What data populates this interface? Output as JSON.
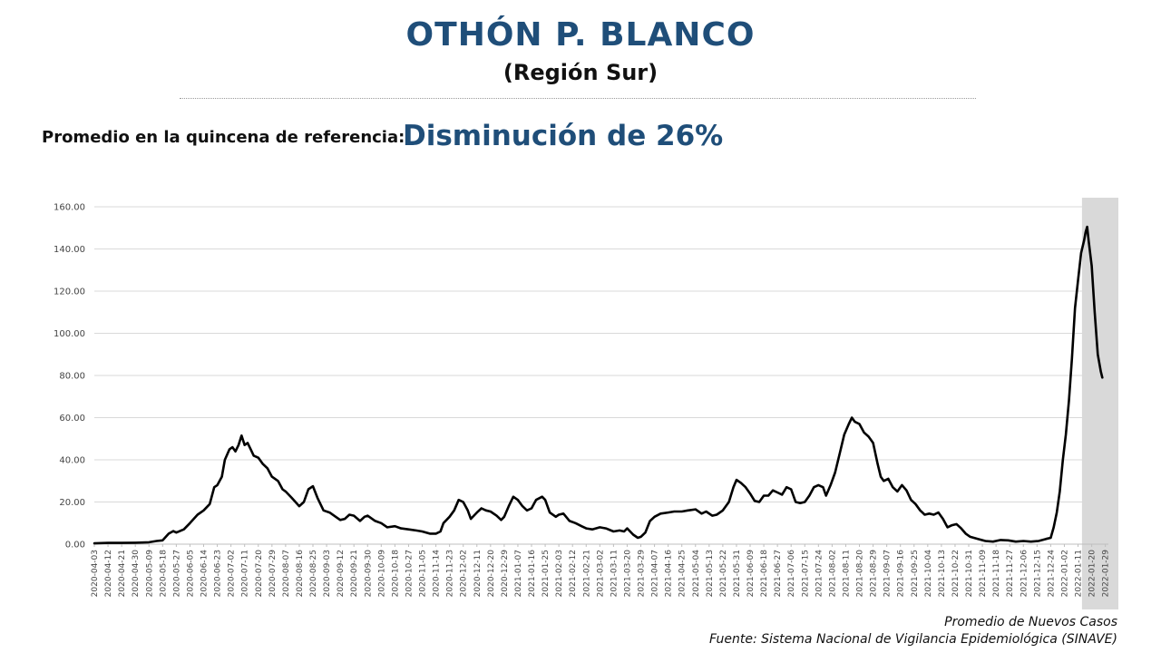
{
  "header": {
    "title": "OTHÓN P. BLANCO",
    "subtitle": "(Región Sur)"
  },
  "reference": {
    "label": "Promedio en la quincena de referencia:",
    "value": "Disminución de 26%"
  },
  "footer": {
    "series_label": "Promedio de Nuevos Casos",
    "source": "Fuente: Sistema Nacional de Vigilancia Epidemiológica (SINAVE)"
  },
  "colors": {
    "title": "#1f4e79",
    "line": "#000000",
    "grid": "#d9d9d9",
    "highlight": "#d9d9d9"
  },
  "chart_data": {
    "type": "line",
    "title": "",
    "xlabel": "",
    "ylabel": "",
    "ylim": [
      0,
      160
    ],
    "y_ticks": [
      "0.00",
      "20.00",
      "40.00",
      "60.00",
      "80.00",
      "100.00",
      "120.00",
      "140.00",
      "160.00"
    ],
    "grid": true,
    "highlight_range": [
      "2022-01-16",
      "2022-02-01"
    ],
    "x_tick_labels": [
      "2020-04-03",
      "2020-04-12",
      "2020-04-21",
      "2020-04-30",
      "2020-05-09",
      "2020-05-18",
      "2020-05-27",
      "2020-06-05",
      "2020-06-14",
      "2020-06-23",
      "2020-07-02",
      "2020-07-11",
      "2020-07-20",
      "2020-07-29",
      "2020-08-07",
      "2020-08-16",
      "2020-08-25",
      "2020-09-03",
      "2020-09-12",
      "2020-09-21",
      "2020-09-30",
      "2020-10-09",
      "2020-10-18",
      "2020-10-27",
      "2020-11-05",
      "2020-11-14",
      "2020-11-23",
      "2020-12-02",
      "2020-12-11",
      "2020-12-20",
      "2020-12-29",
      "2021-01-07",
      "2021-01-16",
      "2021-01-25",
      "2021-02-03",
      "2021-02-12",
      "2021-02-21",
      "2021-03-02",
      "2021-03-11",
      "2021-03-20",
      "2021-03-29",
      "2021-04-07",
      "2021-04-16",
      "2021-04-25",
      "2021-05-04",
      "2021-05-13",
      "2021-05-22",
      "2021-05-31",
      "2021-06-09",
      "2021-06-18",
      "2021-06-27",
      "2021-07-06",
      "2021-07-15",
      "2021-07-24",
      "2021-08-02",
      "2021-08-11",
      "2021-08-20",
      "2021-08-29",
      "2021-09-07",
      "2021-09-16",
      "2021-09-25",
      "2021-10-04",
      "2021-10-13",
      "2021-10-22",
      "2021-10-31",
      "2021-11-09",
      "2021-11-18",
      "2021-11-27",
      "2021-12-06",
      "2021-12-15",
      "2021-12-24",
      "2022-01-02",
      "2022-01-11",
      "2022-01-20",
      "2022-01-29"
    ],
    "series": [
      {
        "values": [
          [
            "2020-04-03",
            0.4
          ],
          [
            "2020-04-12",
            0.6
          ],
          [
            "2020-04-21",
            0.6
          ],
          [
            "2020-04-30",
            0.7
          ],
          [
            "2020-05-09",
            0.9
          ],
          [
            "2020-05-14",
            1.5
          ],
          [
            "2020-05-18",
            1.8
          ],
          [
            "2020-05-22",
            5
          ],
          [
            "2020-05-25",
            6.2
          ],
          [
            "2020-05-27",
            5.5
          ],
          [
            "2020-06-01",
            7
          ],
          [
            "2020-06-05",
            10
          ],
          [
            "2020-06-10",
            14
          ],
          [
            "2020-06-14",
            16
          ],
          [
            "2020-06-18",
            19
          ],
          [
            "2020-06-21",
            27
          ],
          [
            "2020-06-23",
            28
          ],
          [
            "2020-06-26",
            32
          ],
          [
            "2020-06-28",
            40
          ],
          [
            "2020-07-01",
            45
          ],
          [
            "2020-07-03",
            46
          ],
          [
            "2020-07-05",
            44
          ],
          [
            "2020-07-07",
            47
          ],
          [
            "2020-07-09",
            51.5
          ],
          [
            "2020-07-11",
            47
          ],
          [
            "2020-07-13",
            48
          ],
          [
            "2020-07-15",
            45
          ],
          [
            "2020-07-17",
            42
          ],
          [
            "2020-07-20",
            41
          ],
          [
            "2020-07-23",
            38
          ],
          [
            "2020-07-26",
            36
          ],
          [
            "2020-07-29",
            32
          ],
          [
            "2020-08-02",
            30
          ],
          [
            "2020-08-05",
            26
          ],
          [
            "2020-08-07",
            25
          ],
          [
            "2020-08-11",
            22
          ],
          [
            "2020-08-16",
            18
          ],
          [
            "2020-08-19",
            20
          ],
          [
            "2020-08-22",
            26
          ],
          [
            "2020-08-25",
            27.5
          ],
          [
            "2020-08-28",
            22
          ],
          [
            "2020-09-01",
            16
          ],
          [
            "2020-09-05",
            15
          ],
          [
            "2020-09-09",
            13
          ],
          [
            "2020-09-12",
            11.5
          ],
          [
            "2020-09-15",
            12
          ],
          [
            "2020-09-18",
            14
          ],
          [
            "2020-09-21",
            13.5
          ],
          [
            "2020-09-25",
            11
          ],
          [
            "2020-09-28",
            13
          ],
          [
            "2020-09-30",
            13.5
          ],
          [
            "2020-10-05",
            11
          ],
          [
            "2020-10-09",
            10
          ],
          [
            "2020-10-13",
            8
          ],
          [
            "2020-10-18",
            8.5
          ],
          [
            "2020-10-22",
            7.5
          ],
          [
            "2020-10-27",
            7
          ],
          [
            "2020-11-01",
            6.5
          ],
          [
            "2020-11-05",
            6
          ],
          [
            "2020-11-10",
            5
          ],
          [
            "2020-11-14",
            5
          ],
          [
            "2020-11-17",
            6
          ],
          [
            "2020-11-19",
            10
          ],
          [
            "2020-11-23",
            13
          ],
          [
            "2020-11-26",
            16
          ],
          [
            "2020-11-29",
            21
          ],
          [
            "2020-12-02",
            20
          ],
          [
            "2020-12-05",
            16
          ],
          [
            "2020-12-07",
            12
          ],
          [
            "2020-12-11",
            15
          ],
          [
            "2020-12-14",
            17
          ],
          [
            "2020-12-17",
            16
          ],
          [
            "2020-12-20",
            15.5
          ],
          [
            "2020-12-24",
            13.5
          ],
          [
            "2020-12-27",
            11.5
          ],
          [
            "2020-12-29",
            13
          ],
          [
            "2021-01-01",
            18
          ],
          [
            "2021-01-04",
            22.5
          ],
          [
            "2021-01-07",
            21
          ],
          [
            "2021-01-10",
            18
          ],
          [
            "2021-01-13",
            16
          ],
          [
            "2021-01-16",
            17
          ],
          [
            "2021-01-19",
            21
          ],
          [
            "2021-01-23",
            22.5
          ],
          [
            "2021-01-25",
            21
          ],
          [
            "2021-01-28",
            15
          ],
          [
            "2021-02-01",
            13
          ],
          [
            "2021-02-03",
            14
          ],
          [
            "2021-02-06",
            14.5
          ],
          [
            "2021-02-10",
            11
          ],
          [
            "2021-02-14",
            10
          ],
          [
            "2021-02-18",
            8.5
          ],
          [
            "2021-02-21",
            7.5
          ],
          [
            "2021-02-25",
            7
          ],
          [
            "2021-03-02",
            8
          ],
          [
            "2021-03-06",
            7.5
          ],
          [
            "2021-03-11",
            6
          ],
          [
            "2021-03-15",
            6.5
          ],
          [
            "2021-03-18",
            6
          ],
          [
            "2021-03-20",
            7.5
          ],
          [
            "2021-03-24",
            4.5
          ],
          [
            "2021-03-27",
            3
          ],
          [
            "2021-03-29",
            3.5
          ],
          [
            "2021-04-01",
            5.5
          ],
          [
            "2021-04-04",
            11
          ],
          [
            "2021-04-07",
            13
          ],
          [
            "2021-04-11",
            14.5
          ],
          [
            "2021-04-16",
            15
          ],
          [
            "2021-04-20",
            15.5
          ],
          [
            "2021-04-25",
            15.5
          ],
          [
            "2021-04-29",
            16
          ],
          [
            "2021-05-04",
            16.5
          ],
          [
            "2021-05-08",
            14.5
          ],
          [
            "2021-05-11",
            15.5
          ],
          [
            "2021-05-15",
            13.5
          ],
          [
            "2021-05-18",
            14
          ],
          [
            "2021-05-22",
            16
          ],
          [
            "2021-05-26",
            20
          ],
          [
            "2021-05-29",
            27
          ],
          [
            "2021-05-31",
            30.5
          ],
          [
            "2021-06-03",
            29
          ],
          [
            "2021-06-06",
            27
          ],
          [
            "2021-06-09",
            24
          ],
          [
            "2021-06-12",
            20.5
          ],
          [
            "2021-06-15",
            20
          ],
          [
            "2021-06-18",
            23
          ],
          [
            "2021-06-21",
            23
          ],
          [
            "2021-06-24",
            25.5
          ],
          [
            "2021-06-27",
            24.5
          ],
          [
            "2021-06-30",
            23.5
          ],
          [
            "2021-07-03",
            27
          ],
          [
            "2021-07-06",
            26
          ],
          [
            "2021-07-09",
            20
          ],
          [
            "2021-07-12",
            19.5
          ],
          [
            "2021-07-15",
            20
          ],
          [
            "2021-07-18",
            23
          ],
          [
            "2021-07-21",
            27
          ],
          [
            "2021-07-24",
            28
          ],
          [
            "2021-07-27",
            27
          ],
          [
            "2021-07-29",
            23
          ],
          [
            "2021-08-01",
            28
          ],
          [
            "2021-08-04",
            34
          ],
          [
            "2021-08-07",
            43
          ],
          [
            "2021-08-10",
            52
          ],
          [
            "2021-08-13",
            57
          ],
          [
            "2021-08-15",
            60
          ],
          [
            "2021-08-17",
            58
          ],
          [
            "2021-08-20",
            57
          ],
          [
            "2021-08-23",
            53
          ],
          [
            "2021-08-26",
            51
          ],
          [
            "2021-08-29",
            48
          ],
          [
            "2021-09-01",
            38
          ],
          [
            "2021-09-03",
            32
          ],
          [
            "2021-09-05",
            30
          ],
          [
            "2021-09-08",
            31
          ],
          [
            "2021-09-11",
            27
          ],
          [
            "2021-09-14",
            25
          ],
          [
            "2021-09-17",
            28
          ],
          [
            "2021-09-20",
            25.5
          ],
          [
            "2021-09-23",
            21
          ],
          [
            "2021-09-26",
            19
          ],
          [
            "2021-09-29",
            16
          ],
          [
            "2021-10-02",
            14
          ],
          [
            "2021-10-05",
            14.5
          ],
          [
            "2021-10-08",
            14
          ],
          [
            "2021-10-11",
            15
          ],
          [
            "2021-10-14",
            12
          ],
          [
            "2021-10-17",
            8
          ],
          [
            "2021-10-20",
            9
          ],
          [
            "2021-10-23",
            9.5
          ],
          [
            "2021-10-26",
            7.5
          ],
          [
            "2021-10-29",
            5
          ],
          [
            "2021-11-01",
            3.5
          ],
          [
            "2021-11-06",
            2.5
          ],
          [
            "2021-11-11",
            1.5
          ],
          [
            "2021-11-16",
            1.2
          ],
          [
            "2021-11-21",
            2
          ],
          [
            "2021-11-26",
            1.8
          ],
          [
            "2021-12-01",
            1.2
          ],
          [
            "2021-12-06",
            1.5
          ],
          [
            "2021-12-11",
            1.2
          ],
          [
            "2021-12-16",
            1.5
          ],
          [
            "2021-12-21",
            2.5
          ],
          [
            "2021-12-24",
            3
          ],
          [
            "2021-12-26",
            8
          ],
          [
            "2021-12-28",
            15
          ],
          [
            "2021-12-30",
            25
          ],
          [
            "2022-01-01",
            40
          ],
          [
            "2022-01-03",
            52
          ],
          [
            "2022-01-05",
            68
          ],
          [
            "2022-01-07",
            88
          ],
          [
            "2022-01-09",
            112
          ],
          [
            "2022-01-11",
            125
          ],
          [
            "2022-01-13",
            138
          ],
          [
            "2022-01-15",
            144
          ],
          [
            "2022-01-16",
            148
          ],
          [
            "2022-01-17",
            150.5
          ],
          [
            "2022-01-18",
            144
          ],
          [
            "2022-01-20",
            132
          ],
          [
            "2022-01-22",
            110
          ],
          [
            "2022-01-24",
            90
          ],
          [
            "2022-01-26",
            82
          ],
          [
            "2022-01-27",
            79
          ]
        ]
      }
    ]
  }
}
